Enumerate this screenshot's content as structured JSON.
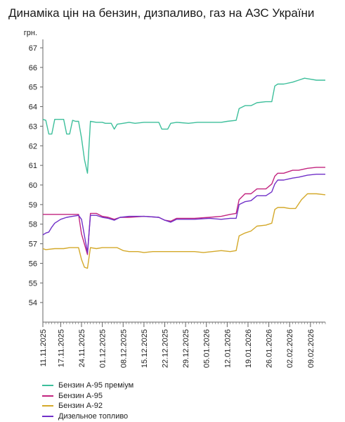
{
  "title": "Динаміка цін на бензин, дизпаливо, газ на АЗС України",
  "colors": {
    "premium95": "#3dbf9b",
    "a95": "#c2247f",
    "a92": "#d4a92a",
    "diesel": "#7030c8",
    "axis": "#666666",
    "text": "#222222"
  },
  "chart_data": {
    "type": "line",
    "ylabel": "грн.",
    "ylim": [
      53,
      67
    ],
    "yticks": [
      54,
      55,
      56,
      57,
      58,
      59,
      60,
      61,
      62,
      63,
      64,
      65,
      66,
      67
    ],
    "x_range": [
      "2025-11-11",
      "2026-02-14"
    ],
    "xticks": [
      "11.11.2025",
      "17.11.2025",
      "24.11.2025",
      "01.12.2025",
      "08.12.2025",
      "15.12.2025",
      "22.12.2025",
      "29.12.2025",
      "05.01.2026",
      "12.01.2026",
      "19.01.2026",
      "26.01.2026",
      "02.02.2026",
      "09.02.2026"
    ],
    "legend_position": "bottom-left",
    "grid": false,
    "series": [
      {
        "name": "Бензин А-95 преміум",
        "color_key": "premium95",
        "points": [
          [
            "2025-11-11",
            63.35
          ],
          [
            "2025-11-12",
            63.3
          ],
          [
            "2025-11-13",
            62.6
          ],
          [
            "2025-11-14",
            62.6
          ],
          [
            "2025-11-15",
            63.35
          ],
          [
            "2025-11-17",
            63.35
          ],
          [
            "2025-11-18",
            63.35
          ],
          [
            "2025-11-19",
            62.6
          ],
          [
            "2025-11-20",
            62.6
          ],
          [
            "2025-11-21",
            63.3
          ],
          [
            "2025-11-22",
            63.25
          ],
          [
            "2025-11-23",
            63.25
          ],
          [
            "2025-11-24",
            62.4
          ],
          [
            "2025-11-25",
            61.3
          ],
          [
            "2025-11-26",
            60.6
          ],
          [
            "2025-11-27",
            63.25
          ],
          [
            "2025-11-29",
            63.2
          ],
          [
            "2025-12-01",
            63.2
          ],
          [
            "2025-12-02",
            63.15
          ],
          [
            "2025-12-04",
            63.15
          ],
          [
            "2025-12-05",
            62.85
          ],
          [
            "2025-12-06",
            63.1
          ],
          [
            "2025-12-08",
            63.15
          ],
          [
            "2025-12-10",
            63.2
          ],
          [
            "2025-12-12",
            63.15
          ],
          [
            "2025-12-15",
            63.2
          ],
          [
            "2025-12-18",
            63.2
          ],
          [
            "2025-12-20",
            63.2
          ],
          [
            "2025-12-21",
            62.85
          ],
          [
            "2025-12-23",
            62.85
          ],
          [
            "2025-12-24",
            63.15
          ],
          [
            "2025-12-26",
            63.2
          ],
          [
            "2025-12-30",
            63.15
          ],
          [
            "2026-01-02",
            63.2
          ],
          [
            "2026-01-06",
            63.2
          ],
          [
            "2026-01-10",
            63.2
          ],
          [
            "2026-01-12",
            63.25
          ],
          [
            "2026-01-15",
            63.3
          ],
          [
            "2026-01-16",
            63.9
          ],
          [
            "2026-01-18",
            64.05
          ],
          [
            "2026-01-20",
            64.05
          ],
          [
            "2026-01-22",
            64.2
          ],
          [
            "2026-01-25",
            64.25
          ],
          [
            "2026-01-27",
            64.25
          ],
          [
            "2026-01-28",
            65.05
          ],
          [
            "2026-01-29",
            65.15
          ],
          [
            "2026-01-31",
            65.15
          ],
          [
            "2026-02-03",
            65.25
          ],
          [
            "2026-02-05",
            65.35
          ],
          [
            "2026-02-07",
            65.45
          ],
          [
            "2026-02-09",
            65.4
          ],
          [
            "2026-02-11",
            65.35
          ],
          [
            "2026-02-14",
            65.35
          ]
        ]
      },
      {
        "name": "Бензин А-95",
        "color_key": "a95",
        "points": [
          [
            "2025-11-11",
            58.5
          ],
          [
            "2025-11-23",
            58.5
          ],
          [
            "2025-11-24",
            57.5
          ],
          [
            "2025-11-26",
            56.45
          ],
          [
            "2025-11-27",
            58.55
          ],
          [
            "2025-11-29",
            58.55
          ],
          [
            "2025-12-01",
            58.4
          ],
          [
            "2025-12-03",
            58.35
          ],
          [
            "2025-12-05",
            58.25
          ],
          [
            "2025-12-07",
            58.35
          ],
          [
            "2025-12-10",
            58.35
          ],
          [
            "2025-12-15",
            58.4
          ],
          [
            "2025-12-20",
            58.35
          ],
          [
            "2025-12-22",
            58.2
          ],
          [
            "2025-12-24",
            58.15
          ],
          [
            "2025-12-26",
            58.3
          ],
          [
            "2026-01-01",
            58.3
          ],
          [
            "2026-01-06",
            58.35
          ],
          [
            "2026-01-10",
            58.4
          ],
          [
            "2026-01-13",
            58.5
          ],
          [
            "2026-01-15",
            58.55
          ],
          [
            "2026-01-16",
            59.25
          ],
          [
            "2026-01-18",
            59.55
          ],
          [
            "2026-01-20",
            59.55
          ],
          [
            "2026-01-22",
            59.8
          ],
          [
            "2026-01-25",
            59.8
          ],
          [
            "2026-01-27",
            60.05
          ],
          [
            "2026-01-28",
            60.45
          ],
          [
            "2026-01-29",
            60.6
          ],
          [
            "2026-01-31",
            60.6
          ],
          [
            "2026-02-03",
            60.75
          ],
          [
            "2026-02-05",
            60.75
          ],
          [
            "2026-02-08",
            60.85
          ],
          [
            "2026-02-11",
            60.9
          ],
          [
            "2026-02-14",
            60.9
          ]
        ]
      },
      {
        "name": "Бензин А-92",
        "color_key": "a92",
        "points": [
          [
            "2025-11-11",
            56.75
          ],
          [
            "2025-11-12",
            56.7
          ],
          [
            "2025-11-15",
            56.75
          ],
          [
            "2025-11-18",
            56.75
          ],
          [
            "2025-11-20",
            56.8
          ],
          [
            "2025-11-23",
            56.8
          ],
          [
            "2025-11-24",
            56.2
          ],
          [
            "2025-11-25",
            55.8
          ],
          [
            "2025-11-26",
            55.75
          ],
          [
            "2025-11-27",
            56.8
          ],
          [
            "2025-11-29",
            56.75
          ],
          [
            "2025-12-01",
            56.8
          ],
          [
            "2025-12-06",
            56.8
          ],
          [
            "2025-12-08",
            56.65
          ],
          [
            "2025-12-10",
            56.6
          ],
          [
            "2025-12-13",
            56.6
          ],
          [
            "2025-12-15",
            56.55
          ],
          [
            "2025-12-18",
            56.6
          ],
          [
            "2025-12-25",
            56.6
          ],
          [
            "2026-01-01",
            56.6
          ],
          [
            "2026-01-04",
            56.55
          ],
          [
            "2026-01-07",
            56.6
          ],
          [
            "2026-01-10",
            56.65
          ],
          [
            "2026-01-13",
            56.6
          ],
          [
            "2026-01-15",
            56.65
          ],
          [
            "2026-01-16",
            57.4
          ],
          [
            "2026-01-18",
            57.55
          ],
          [
            "2026-01-20",
            57.65
          ],
          [
            "2026-01-22",
            57.9
          ],
          [
            "2026-01-25",
            57.95
          ],
          [
            "2026-01-27",
            58.05
          ],
          [
            "2026-01-28",
            58.75
          ],
          [
            "2026-01-29",
            58.85
          ],
          [
            "2026-01-31",
            58.85
          ],
          [
            "2026-02-02",
            58.8
          ],
          [
            "2026-02-04",
            58.8
          ],
          [
            "2026-02-06",
            59.25
          ],
          [
            "2026-02-08",
            59.55
          ],
          [
            "2026-02-11",
            59.55
          ],
          [
            "2026-02-14",
            59.5
          ]
        ]
      },
      {
        "name": "Дизельное топливо",
        "color_key": "diesel",
        "points": [
          [
            "2025-11-11",
            57.45
          ],
          [
            "2025-11-12",
            57.55
          ],
          [
            "2025-11-13",
            57.6
          ],
          [
            "2025-11-14",
            57.85
          ],
          [
            "2025-11-15",
            58.05
          ],
          [
            "2025-11-17",
            58.25
          ],
          [
            "2025-11-19",
            58.35
          ],
          [
            "2025-11-21",
            58.4
          ],
          [
            "2025-11-23",
            58.45
          ],
          [
            "2025-11-24",
            58.25
          ],
          [
            "2025-11-26",
            56.55
          ],
          [
            "2025-11-27",
            58.45
          ],
          [
            "2025-11-29",
            58.45
          ],
          [
            "2025-12-01",
            58.35
          ],
          [
            "2025-12-03",
            58.3
          ],
          [
            "2025-12-05",
            58.2
          ],
          [
            "2025-12-07",
            58.35
          ],
          [
            "2025-12-10",
            58.4
          ],
          [
            "2025-12-15",
            58.4
          ],
          [
            "2025-12-20",
            58.35
          ],
          [
            "2025-12-22",
            58.2
          ],
          [
            "2025-12-24",
            58.1
          ],
          [
            "2025-12-26",
            58.25
          ],
          [
            "2026-01-01",
            58.25
          ],
          [
            "2026-01-06",
            58.3
          ],
          [
            "2026-01-10",
            58.25
          ],
          [
            "2026-01-13",
            58.3
          ],
          [
            "2026-01-15",
            58.3
          ],
          [
            "2026-01-16",
            59.0
          ],
          [
            "2026-01-18",
            59.15
          ],
          [
            "2026-01-20",
            59.2
          ],
          [
            "2026-01-22",
            59.45
          ],
          [
            "2026-01-25",
            59.45
          ],
          [
            "2026-01-27",
            59.65
          ],
          [
            "2026-01-28",
            60.05
          ],
          [
            "2026-01-29",
            60.25
          ],
          [
            "2026-01-31",
            60.25
          ],
          [
            "2026-02-03",
            60.35
          ],
          [
            "2026-02-05",
            60.4
          ],
          [
            "2026-02-08",
            60.5
          ],
          [
            "2026-02-11",
            60.55
          ],
          [
            "2026-02-14",
            60.55
          ]
        ]
      }
    ]
  }
}
